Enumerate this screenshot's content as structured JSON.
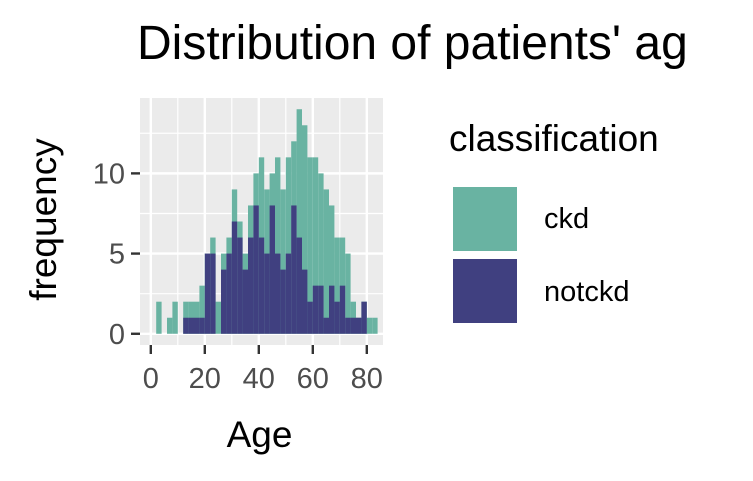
{
  "chart_data": {
    "type": "bar",
    "title": "Distribution of patients' ag",
    "xlabel": "Age",
    "ylabel": "frequency",
    "xlim": [
      -4,
      86
    ],
    "ylim": [
      -0.7,
      14.7
    ],
    "x_ticks": [
      0,
      20,
      40,
      60,
      80
    ],
    "y_ticks": [
      0,
      5,
      10
    ],
    "bin_width": 2,
    "bins_start": [
      2,
      6,
      8,
      12,
      14,
      16,
      18,
      20,
      22,
      24,
      26,
      28,
      30,
      32,
      34,
      36,
      38,
      40,
      42,
      44,
      46,
      48,
      50,
      52,
      54,
      56,
      58,
      60,
      62,
      64,
      66,
      68,
      70,
      72,
      74,
      76,
      78,
      80,
      82
    ],
    "series": [
      {
        "name": "ckd",
        "color": "#69B3A2",
        "values": [
          2,
          1,
          2,
          2,
          2,
          2,
          3,
          5,
          6,
          2,
          5,
          6,
          9,
          7,
          5,
          8,
          10,
          11,
          9,
          10,
          11,
          9,
          11,
          12,
          14,
          13,
          11,
          11,
          10,
          9,
          8,
          6,
          6,
          5,
          2,
          1,
          2,
          1,
          1
        ]
      },
      {
        "name": "notckd",
        "color": "#404080",
        "values": [
          0,
          0,
          0,
          1,
          1,
          1,
          1,
          5,
          5,
          0,
          4,
          5,
          7,
          6,
          4,
          6,
          8,
          6,
          5,
          8,
          5,
          4,
          5,
          8,
          6,
          4,
          2,
          3,
          3,
          1,
          3,
          2,
          3,
          1,
          1,
          1,
          2,
          0,
          0
        ]
      }
    ],
    "position": "identity",
    "grid": true,
    "legend": {
      "title": "classification",
      "position": "right"
    }
  }
}
